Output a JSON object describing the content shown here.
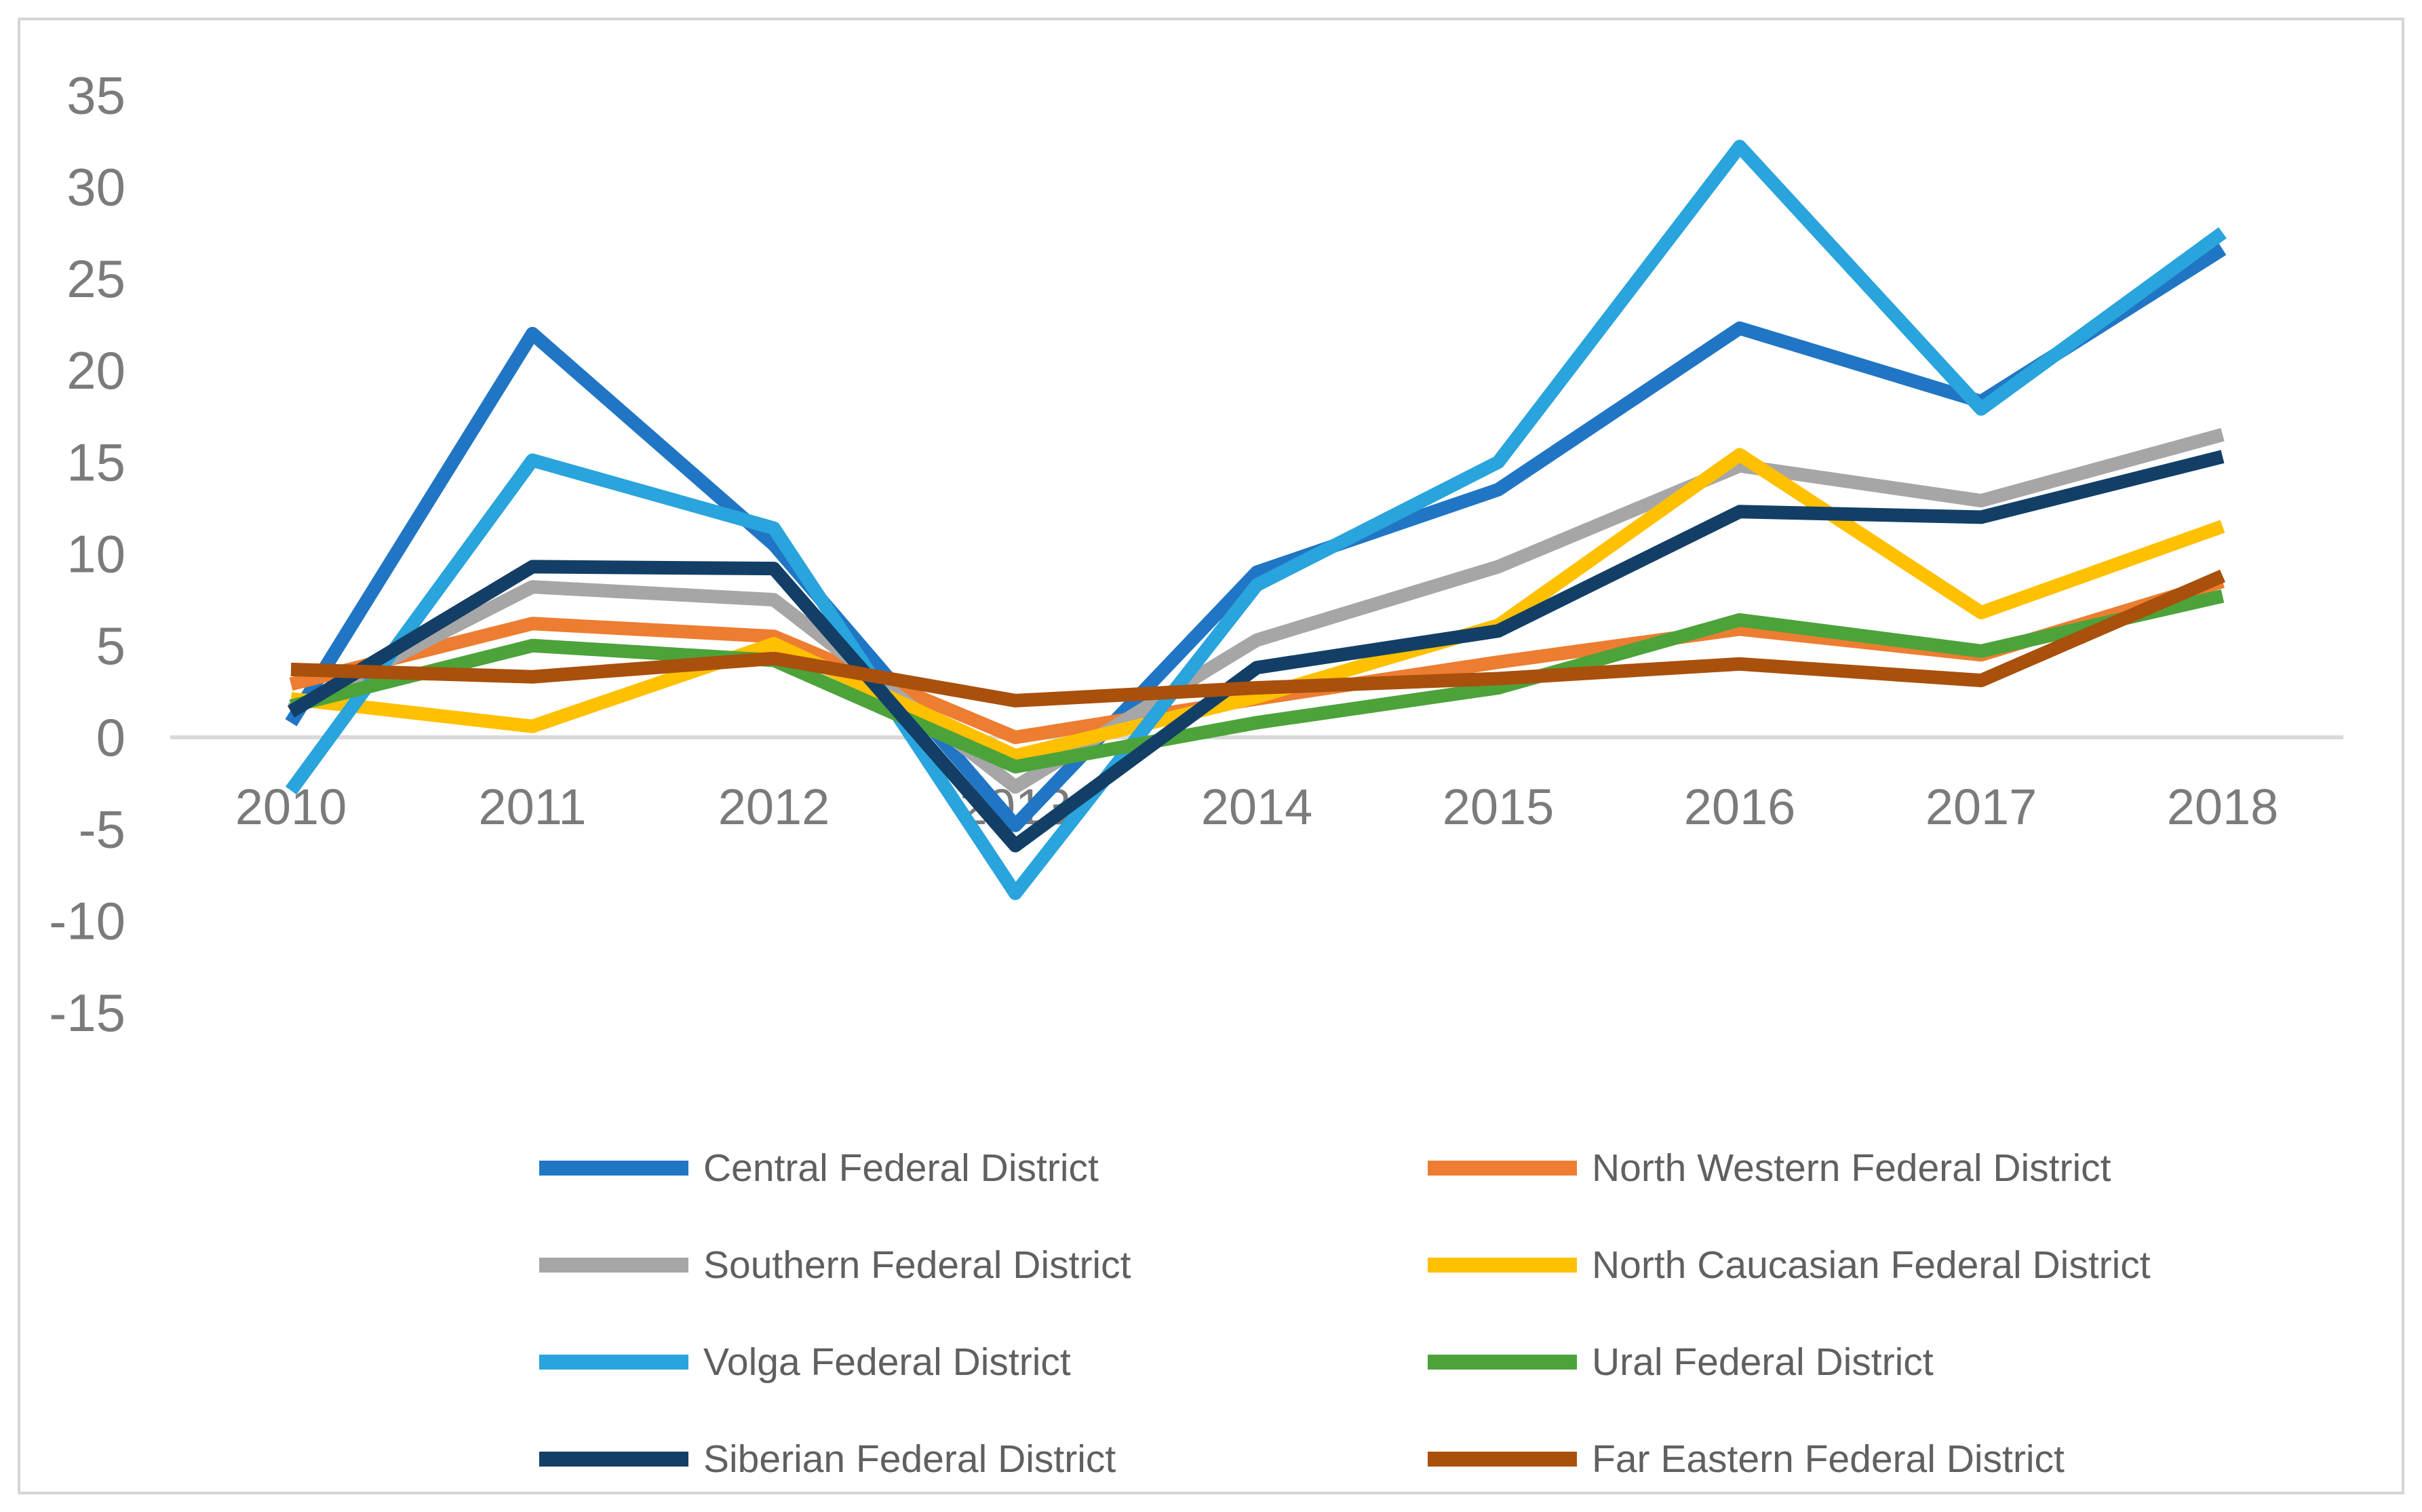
{
  "chart_data": {
    "type": "line",
    "title": "",
    "xlabel": "",
    "ylabel": "",
    "x": [
      2010,
      2011,
      2012,
      2013,
      2014,
      2015,
      2016,
      2017,
      2018
    ],
    "ylim": [
      -15,
      35
    ],
    "yticks": [
      35,
      30,
      25,
      20,
      15,
      10,
      5,
      0,
      -5,
      -10,
      -15
    ],
    "grid": "zero-line-only",
    "legend_position": "bottom-two-columns",
    "series": [
      {
        "name": "Central Federal District",
        "color": "#2076C4",
        "values": [
          0.8,
          22.0,
          10.5,
          -4.8,
          9.0,
          13.5,
          22.3,
          18.3,
          26.6
        ]
      },
      {
        "name": "North Western Federal District",
        "color": "#ED7D31",
        "values": [
          2.9,
          6.2,
          5.5,
          0.0,
          2.1,
          4.1,
          5.9,
          4.5,
          8.5
        ]
      },
      {
        "name": "Southern Federal District",
        "color": "#A6A6A6",
        "values": [
          1.5,
          8.2,
          7.5,
          -2.7,
          5.3,
          9.3,
          14.8,
          12.9,
          16.5
        ]
      },
      {
        "name": "North Caucasian Federal District",
        "color": "#FFC000",
        "values": [
          2.1,
          0.6,
          5.1,
          -1.0,
          2.2,
          6.1,
          15.4,
          6.8,
          11.5
        ]
      },
      {
        "name": "Volga Federal District",
        "color": "#29A4DC",
        "values": [
          -2.9,
          15.1,
          11.4,
          -8.5,
          8.3,
          15.0,
          32.2,
          17.9,
          27.5
        ]
      },
      {
        "name": "Ural Federal District",
        "color": "#4CA33A",
        "values": [
          1.7,
          5.0,
          4.2,
          -1.6,
          0.8,
          2.7,
          6.4,
          4.7,
          7.7
        ]
      },
      {
        "name": "Siberian Federal District",
        "color": "#133F66",
        "values": [
          1.4,
          9.3,
          9.2,
          -5.9,
          3.8,
          5.8,
          12.3,
          12.0,
          15.3
        ]
      },
      {
        "name": "Far Eastern Federal District",
        "color": "#A9500C",
        "values": [
          3.7,
          3.3,
          4.3,
          2.0,
          2.7,
          3.2,
          4.0,
          3.1,
          8.8
        ]
      }
    ],
    "legend_columns": [
      [
        "Central Federal District",
        "Southern Federal District",
        "Volga Federal District",
        "Siberian Federal District"
      ],
      [
        "North Western Federal District",
        "North Caucasian Federal District",
        "Ural Federal District",
        "Far Eastern Federal District"
      ]
    ]
  },
  "colors": {
    "axis_text": "#7b7b7b",
    "legend_text": "#606060",
    "zero_line": "#d9d9d9",
    "border": "#d5d5d5",
    "background": "#ffffff"
  }
}
